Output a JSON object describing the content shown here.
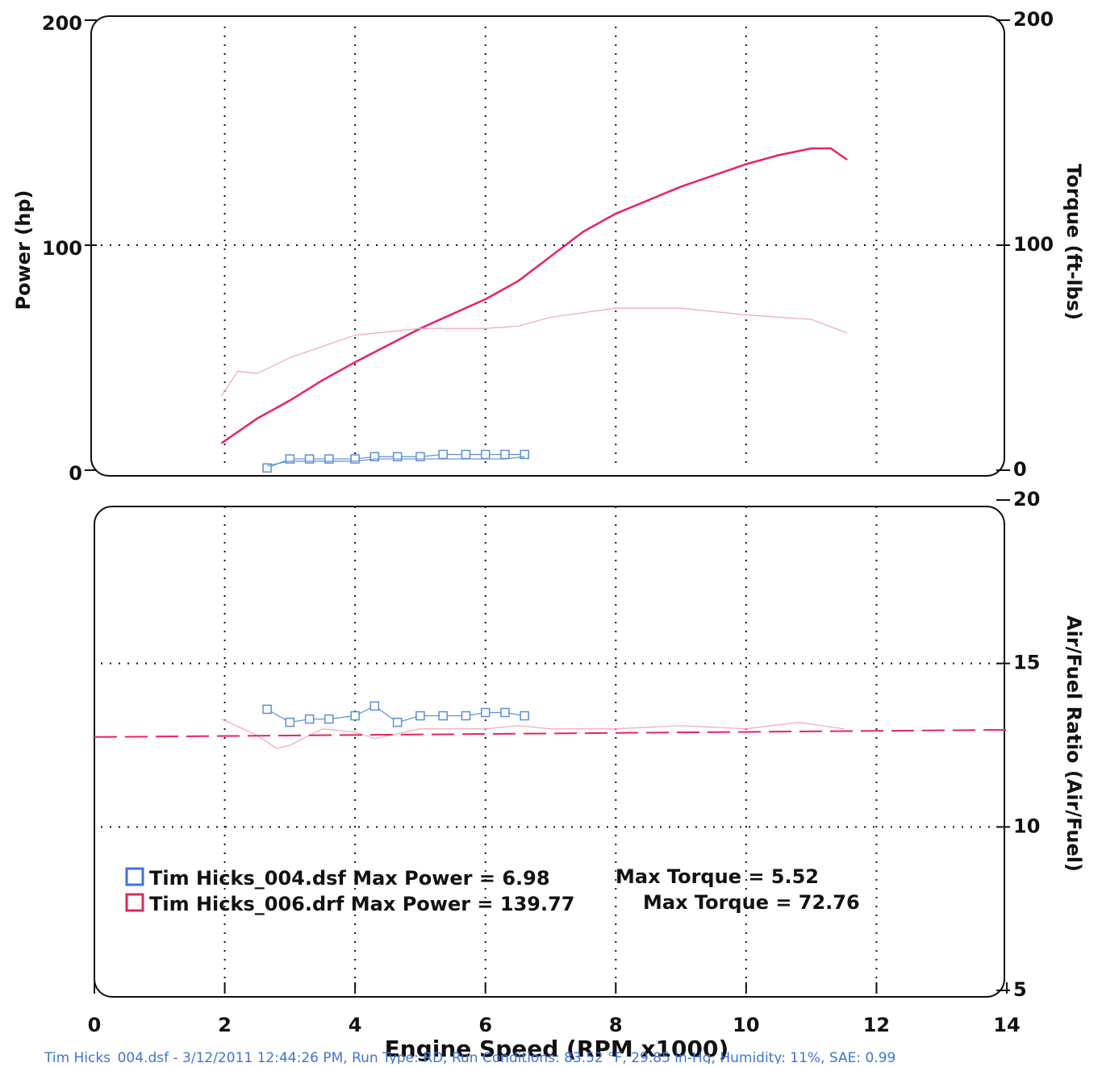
{
  "chart_data": [
    {
      "type": "line",
      "ylabel": "Power (hp)",
      "y2label": "Torque (ft-lbs)",
      "xlim": [
        0,
        14
      ],
      "xticks": [
        0,
        2,
        4,
        6,
        8,
        10,
        12,
        14
      ],
      "ylim": [
        0,
        200
      ],
      "yticks": [
        0,
        100,
        200
      ],
      "y2lim": [
        0,
        200
      ],
      "y2ticks": [
        0,
        100,
        200
      ],
      "grid": true,
      "series": [
        {
          "color": "#e8245a",
          "style": "thick",
          "x": [
            1.95,
            2.5,
            3,
            3.5,
            4,
            5,
            6,
            6.5,
            7,
            7.5,
            8,
            9,
            10,
            10.5,
            11,
            11.3,
            11.55
          ],
          "values": [
            12,
            23,
            31,
            40,
            48,
            63,
            76,
            84,
            95,
            106,
            114,
            126,
            136,
            140,
            143,
            143,
            138
          ]
        },
        {
          "color": "#f3a6bb",
          "style": "thin",
          "axis": "y2",
          "x": [
            1.95,
            2.2,
            2.5,
            3,
            3.5,
            4,
            5,
            6,
            6.5,
            7,
            8,
            9,
            10,
            11,
            11.55
          ],
          "values": [
            33,
            44,
            43,
            50,
            55,
            60,
            63,
            63,
            64,
            68,
            72,
            72,
            69,
            67,
            61
          ]
        },
        {
          "color": "#5b8fd9",
          "style": "markers",
          "x": [
            2.65,
            3,
            3.3,
            3.6,
            4,
            4.3,
            4.65,
            5,
            5.35,
            5.7,
            6,
            6.3,
            6.6
          ],
          "values": [
            1,
            5,
            5,
            5,
            5,
            6,
            6,
            6,
            7,
            7,
            7,
            7,
            7
          ]
        },
        {
          "color": "#5b8fd9",
          "style": "thin",
          "axis": "y2",
          "x": [
            2.65,
            3,
            3.3,
            3.6,
            4,
            4.3,
            4.65,
            5,
            5.35,
            5.7,
            6,
            6.3,
            6.6
          ],
          "values": [
            2,
            4,
            4,
            4,
            4,
            5,
            5,
            5,
            5,
            5,
            5,
            5,
            6
          ]
        }
      ]
    },
    {
      "type": "line",
      "xlabel": "Engine Speed (RPM x1000)",
      "y2label": "Air/Fuel Ratio (Air/Fuel)",
      "xlim": [
        0,
        14
      ],
      "xticks": [
        0,
        2,
        4,
        6,
        8,
        10,
        12,
        14
      ],
      "y2lim": [
        5,
        20
      ],
      "y2ticks": [
        5,
        10,
        15,
        20
      ],
      "grid": true,
      "series": [
        {
          "color": "#5b8fd9",
          "style": "markers",
          "axis": "y2",
          "x": [
            2.65,
            3,
            3.3,
            3.6,
            4,
            4.3,
            4.65,
            5,
            5.35,
            5.7,
            6,
            6.3,
            6.6
          ],
          "values": [
            13.6,
            13.2,
            13.3,
            13.3,
            13.4,
            13.7,
            13.2,
            13.4,
            13.4,
            13.4,
            13.5,
            13.5,
            13.4
          ]
        },
        {
          "color": "#f3a6bb",
          "style": "thin",
          "axis": "y2",
          "x": [
            1.95,
            2.5,
            2.8,
            3,
            3.5,
            4,
            4.3,
            5,
            6,
            6.5,
            7,
            8,
            9,
            10,
            10.8,
            11.5
          ],
          "values": [
            13.3,
            12.8,
            12.4,
            12.5,
            13.0,
            12.9,
            12.7,
            13.0,
            13.0,
            13.1,
            13.0,
            13.0,
            13.1,
            13.0,
            13.2,
            13.0
          ]
        },
        {
          "color": "#e8245a",
          "style": "dashed",
          "axis": "y2",
          "x": [
            0,
            14
          ],
          "values": [
            12.75,
            12.97
          ]
        }
      ],
      "legend": [
        {
          "color": "#3f74d4",
          "text": "Tim Hicks_004.dsf Max Power = 6.98",
          "torque": "Max Torque = 5.52"
        },
        {
          "color": "#e8245a",
          "text": "Tim Hicks_006.drf Max Power = 139.77",
          "torque": "Max Torque = 72.76"
        }
      ]
    }
  ],
  "footer": "Tim Hicks_004.dsf - 3/12/2011 12:44:26 PM, Run Type: RD, Run Conditions: 83.52 °F, 29.85 in-Hg, Humidity: 11%, SAE: 0.99"
}
